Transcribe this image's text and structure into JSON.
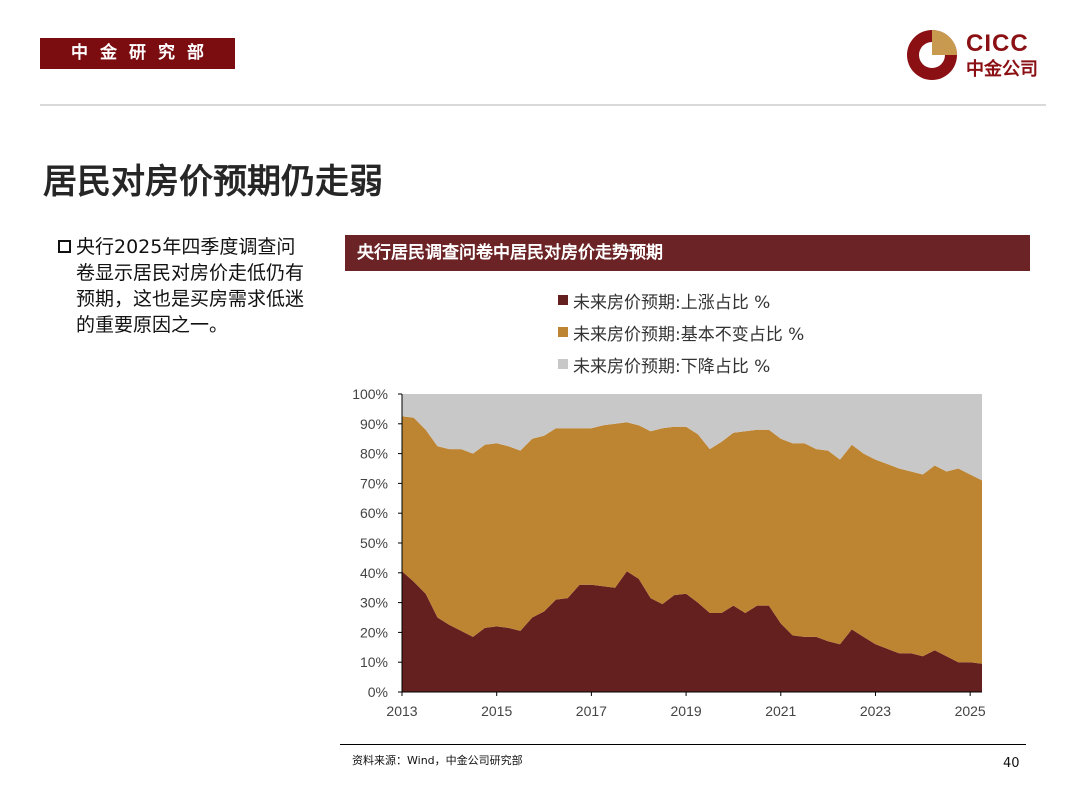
{
  "header": {
    "dept": "中金研究部"
  },
  "logo": {
    "en": "CICC",
    "cn": "中金公司"
  },
  "title": "居民对房价预期仍走弱",
  "bullet": "央行2025年四季度调查问卷显示居民对房价走低仍有预期，这也是买房需求低迷的重要原因之一。",
  "chart_header": "央行居民调查问卷中居民对房价走势预期",
  "source": "资料来源：Wind，中金公司研究部",
  "page_number": "40",
  "colors": {
    "brand": "#7b0d11",
    "rise": "#63201f",
    "flat": "#bd8432",
    "fall": "#c8c8c8"
  },
  "chart_data": {
    "type": "area",
    "stacked": true,
    "title": "央行居民调查问卷中居民对房价走势预期",
    "ylim": [
      0,
      100
    ],
    "y_ticks": [
      "0%",
      "10%",
      "20%",
      "30%",
      "40%",
      "50%",
      "60%",
      "70%",
      "80%",
      "90%",
      "100%"
    ],
    "x_range": [
      2013,
      2025.25
    ],
    "x_ticks": [
      "2013",
      "2015",
      "2017",
      "2019",
      "2021",
      "2023",
      "2025"
    ],
    "x": [
      2013.0,
      2013.25,
      2013.5,
      2013.75,
      2014.0,
      2014.25,
      2014.5,
      2014.75,
      2015.0,
      2015.25,
      2015.5,
      2015.75,
      2016.0,
      2016.25,
      2016.5,
      2016.75,
      2017.0,
      2017.25,
      2017.5,
      2017.75,
      2018.0,
      2018.25,
      2018.5,
      2018.75,
      2019.0,
      2019.25,
      2019.5,
      2019.75,
      2020.0,
      2020.25,
      2020.5,
      2020.75,
      2021.0,
      2021.25,
      2021.5,
      2021.75,
      2022.0,
      2022.25,
      2022.5,
      2022.75,
      2023.0,
      2023.25,
      2023.5,
      2023.75,
      2024.0,
      2024.25,
      2024.5,
      2024.75,
      2025.0,
      2025.25
    ],
    "series": [
      {
        "name": "未来房价预期:上涨占比 %",
        "values": [
          40.5,
          37,
          33,
          25,
          22.5,
          20.5,
          18.5,
          21.5,
          22,
          21.5,
          20.5,
          25,
          27,
          31,
          31.5,
          36,
          36,
          35.5,
          35,
          40.5,
          38,
          31.5,
          29.5,
          32.5,
          33,
          30,
          26.5,
          26.5,
          29,
          26.5,
          29,
          29,
          23,
          19,
          18.5,
          18.5,
          17,
          16,
          21,
          18.5,
          16,
          14.5,
          13,
          13,
          12,
          14,
          12,
          10,
          10,
          9.5
        ]
      },
      {
        "name": "未来房价预期:基本不变占比 %",
        "values": [
          52,
          55,
          55,
          57.5,
          59,
          61,
          61.5,
          61.5,
          61.5,
          61,
          60.5,
          60,
          59,
          57.5,
          57,
          52.5,
          52.5,
          54,
          55,
          50,
          51.5,
          56,
          59,
          56.5,
          56,
          56.5,
          55,
          57.5,
          58,
          61,
          59,
          59,
          62,
          64.5,
          65,
          63,
          64,
          62,
          62,
          61.5,
          62,
          62,
          62,
          61,
          61,
          62,
          62,
          65,
          63,
          61.5
        ]
      },
      {
        "name": "未来房价预期:下降占比 %",
        "values": [
          7.5,
          8,
          12,
          17.5,
          18.5,
          18.5,
          20,
          17,
          16.5,
          17.5,
          19,
          15,
          14,
          11.5,
          11.5,
          11.5,
          11.5,
          10.5,
          10,
          9.5,
          10.5,
          12.5,
          11.5,
          11,
          11,
          13.5,
          18.5,
          16,
          13,
          12.5,
          12,
          12,
          15,
          16.5,
          16.5,
          18.5,
          19,
          22,
          17,
          20,
          22,
          23.5,
          25,
          26,
          27,
          24,
          26,
          25,
          27,
          29
        ]
      }
    ]
  }
}
